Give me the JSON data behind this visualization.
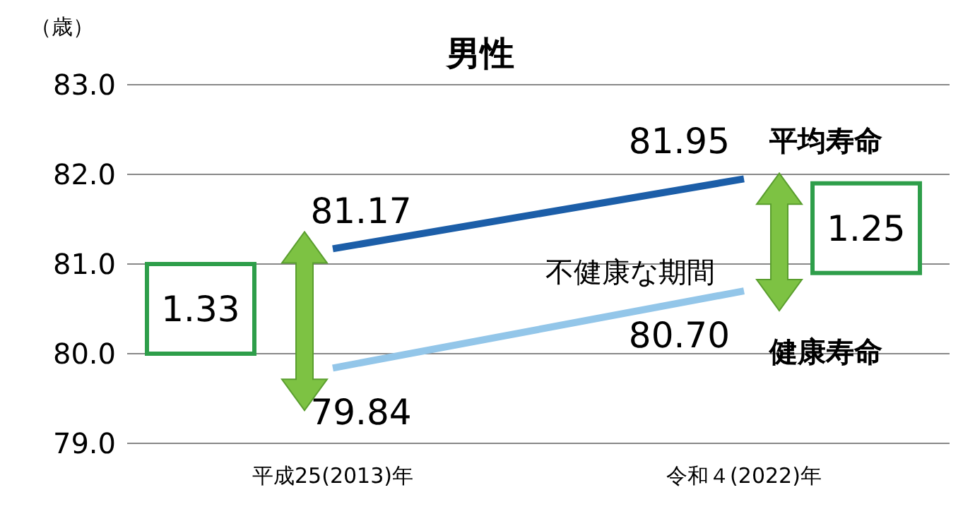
{
  "chart_data": {
    "type": "line",
    "title": "男性",
    "ylabel": "（歳）",
    "categories": [
      "平成25(2013)年",
      "令和４(2022)年"
    ],
    "series": [
      {
        "name": "平均寿命",
        "color": "#1c5ea8",
        "values": [
          81.17,
          81.95
        ],
        "value_labels": [
          "81.17",
          "81.95"
        ]
      },
      {
        "name": "健康寿命",
        "color": "#93c6e9",
        "values": [
          79.84,
          80.7
        ],
        "value_labels": [
          "79.84",
          "80.70"
        ]
      }
    ],
    "ylim": [
      79,
      83
    ],
    "yticks": [
      {
        "value": 79,
        "label": "79.0"
      },
      {
        "value": 80,
        "label": "80.0"
      },
      {
        "value": 81,
        "label": "81.0"
      },
      {
        "value": 82,
        "label": "82.0"
      },
      {
        "value": 83,
        "label": "83.0"
      }
    ],
    "grid": "y",
    "marker": "none",
    "line_style": "solid",
    "legend": false,
    "annotations": [
      "不健康な期間",
      "1.33",
      "1.25"
    ]
  }
}
